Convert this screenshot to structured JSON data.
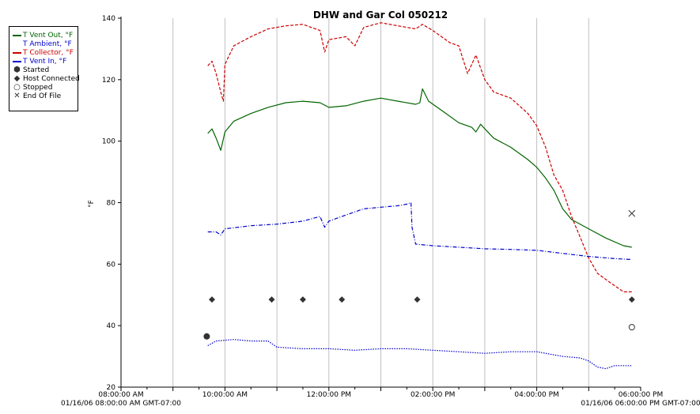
{
  "chart_data": {
    "type": "line",
    "title": "DHW and Gar Col 050212",
    "ylabel": "°F",
    "xlabel": "",
    "ylim": [
      20,
      140
    ],
    "xlim_hours": [
      8,
      18
    ],
    "y_ticks": [
      20,
      40,
      60,
      80,
      100,
      120,
      140
    ],
    "x_ticks": [
      {
        "hour": 8,
        "label": "08:00:00 AM"
      },
      {
        "hour": 10,
        "label": "10:00:00 AM"
      },
      {
        "hour": 12,
        "label": "12:00:00 PM"
      },
      {
        "hour": 14,
        "label": "02:00:00 PM"
      },
      {
        "hour": 16,
        "label": "04:00:00 PM"
      },
      {
        "hour": 18,
        "label": "06:00:00 PM"
      }
    ],
    "x_start_label": "01/16/06 08:00:00 AM GMT-07:00",
    "x_end_label": "01/16/06 06:00:00 PM GMT-07:00",
    "grid": true,
    "legend_position": "top-left outside",
    "series": [
      {
        "name": "T Vent Out, °F",
        "color": "#006400",
        "style": "solid",
        "points": [
          [
            9.67,
            102.5
          ],
          [
            9.75,
            104
          ],
          [
            9.83,
            101
          ],
          [
            9.92,
            97
          ],
          [
            10.0,
            103
          ],
          [
            10.17,
            106.5
          ],
          [
            10.5,
            109
          ],
          [
            10.83,
            111
          ],
          [
            11.17,
            112.5
          ],
          [
            11.5,
            113
          ],
          [
            11.83,
            112.5
          ],
          [
            12.0,
            111
          ],
          [
            12.33,
            111.5
          ],
          [
            12.67,
            113
          ],
          [
            13.0,
            114
          ],
          [
            13.33,
            113
          ],
          [
            13.67,
            112
          ],
          [
            13.75,
            112.5
          ],
          [
            13.8,
            117
          ],
          [
            13.92,
            113
          ],
          [
            14.17,
            110
          ],
          [
            14.5,
            106
          ],
          [
            14.75,
            104.5
          ],
          [
            14.83,
            103
          ],
          [
            14.92,
            105.5
          ],
          [
            15.17,
            101
          ],
          [
            15.5,
            98
          ],
          [
            15.83,
            94
          ],
          [
            16.0,
            91.5
          ],
          [
            16.17,
            88
          ],
          [
            16.33,
            84
          ],
          [
            16.5,
            78
          ],
          [
            16.67,
            74.5
          ],
          [
            17.0,
            71.5
          ],
          [
            17.33,
            68.5
          ],
          [
            17.67,
            66
          ],
          [
            17.83,
            65.5
          ]
        ]
      },
      {
        "name": "T Ambient, °F",
        "color": "#0000cc",
        "style": "dotted",
        "points": [
          [
            9.67,
            33.5
          ],
          [
            9.83,
            35
          ],
          [
            10.17,
            35.5
          ],
          [
            10.5,
            35
          ],
          [
            10.83,
            35
          ],
          [
            11.0,
            33
          ],
          [
            11.5,
            32.5
          ],
          [
            12.0,
            32.5
          ],
          [
            12.5,
            32
          ],
          [
            13.0,
            32.5
          ],
          [
            13.5,
            32.5
          ],
          [
            14.0,
            32
          ],
          [
            14.5,
            31.5
          ],
          [
            15.0,
            31
          ],
          [
            15.5,
            31.5
          ],
          [
            16.0,
            31.5
          ],
          [
            16.5,
            30
          ],
          [
            16.83,
            29.5
          ],
          [
            17.0,
            28.5
          ],
          [
            17.17,
            26.5
          ],
          [
            17.33,
            26
          ],
          [
            17.5,
            27
          ],
          [
            17.67,
            27
          ],
          [
            17.83,
            27
          ]
        ]
      },
      {
        "name": "T Collector, °F",
        "color": "#cc0000",
        "style": "dash",
        "points": [
          [
            9.67,
            124.5
          ],
          [
            9.75,
            126
          ],
          [
            9.83,
            122
          ],
          [
            9.92,
            116
          ],
          [
            9.97,
            113
          ],
          [
            10.0,
            125
          ],
          [
            10.17,
            131
          ],
          [
            10.5,
            134
          ],
          [
            10.83,
            136.5
          ],
          [
            11.17,
            137.5
          ],
          [
            11.5,
            138
          ],
          [
            11.83,
            136
          ],
          [
            11.92,
            129
          ],
          [
            12.0,
            133
          ],
          [
            12.33,
            134
          ],
          [
            12.5,
            131
          ],
          [
            12.67,
            137
          ],
          [
            13.0,
            138.5
          ],
          [
            13.33,
            137.5
          ],
          [
            13.67,
            136.5
          ],
          [
            13.8,
            138
          ],
          [
            14.0,
            136
          ],
          [
            14.33,
            132
          ],
          [
            14.5,
            131
          ],
          [
            14.67,
            122
          ],
          [
            14.83,
            128
          ],
          [
            15.0,
            120
          ],
          [
            15.17,
            116
          ],
          [
            15.5,
            114
          ],
          [
            15.83,
            109
          ],
          [
            16.0,
            105
          ],
          [
            16.17,
            98
          ],
          [
            16.33,
            89
          ],
          [
            16.5,
            84
          ],
          [
            16.67,
            75.5
          ],
          [
            16.83,
            69
          ],
          [
            17.0,
            62
          ],
          [
            17.17,
            57
          ],
          [
            17.33,
            55
          ],
          [
            17.5,
            53
          ],
          [
            17.67,
            51
          ],
          [
            17.83,
            51
          ]
        ]
      },
      {
        "name": "T Vent In, °F",
        "color": "#0000cc",
        "style": "dashdot",
        "points": [
          [
            9.67,
            70.5
          ],
          [
            9.83,
            70.5
          ],
          [
            9.92,
            69.5
          ],
          [
            10.0,
            71.5
          ],
          [
            10.5,
            72.5
          ],
          [
            11.0,
            73
          ],
          [
            11.5,
            74
          ],
          [
            11.83,
            75.5
          ],
          [
            11.92,
            72
          ],
          [
            12.0,
            74
          ],
          [
            12.33,
            76
          ],
          [
            12.67,
            78
          ],
          [
            13.0,
            78.5
          ],
          [
            13.33,
            79
          ],
          [
            13.5,
            79.5
          ],
          [
            13.58,
            80
          ],
          [
            13.6,
            72
          ],
          [
            13.67,
            66.5
          ],
          [
            14.0,
            66
          ],
          [
            14.5,
            65.5
          ],
          [
            15.0,
            65
          ],
          [
            15.5,
            64.8
          ],
          [
            16.0,
            64.5
          ],
          [
            16.5,
            63.5
          ],
          [
            17.0,
            62.5
          ],
          [
            17.5,
            61.8
          ],
          [
            17.83,
            61.5
          ]
        ]
      }
    ],
    "events": [
      {
        "name": "Started",
        "symbol": "hexagon",
        "points": [
          [
            9.65,
            36.5
          ]
        ]
      },
      {
        "name": "Host Connected",
        "symbol": "diamond",
        "points": [
          [
            9.75,
            48.5
          ],
          [
            10.9,
            48.5
          ],
          [
            11.5,
            48.5
          ],
          [
            12.25,
            48.5
          ],
          [
            13.7,
            48.5
          ],
          [
            17.83,
            48.5
          ]
        ]
      },
      {
        "name": "Stopped",
        "symbol": "circle",
        "points": [
          [
            17.83,
            39.5
          ]
        ]
      },
      {
        "name": "End Of File",
        "symbol": "cross",
        "points": [
          [
            17.83,
            76.5
          ]
        ]
      }
    ]
  }
}
